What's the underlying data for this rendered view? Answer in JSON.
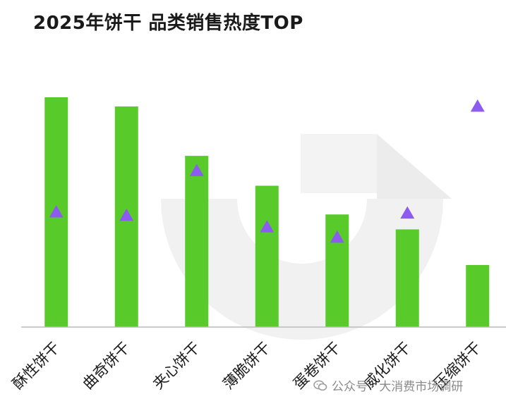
{
  "title": "2025年饼干 品类销售热度TOP",
  "watermark": {
    "icon": "wechat-icon",
    "text": "公众号 · 大消费市场调研"
  },
  "colors": {
    "bar": "#4fc820",
    "marker": "#8c5cf0",
    "axis": "#bbbbbb",
    "label": "#1a1a1a"
  },
  "chart_data": {
    "type": "bar",
    "title": "2025年饼干 品类销售热度TOP",
    "xlabel": "",
    "ylabel": "",
    "categories": [
      "酥性饼干",
      "曲奇饼干",
      "夹心饼干",
      "薄脆饼干",
      "蛋卷饼干",
      "威化饼干",
      "压缩饼干"
    ],
    "series": [
      {
        "kind": "bar",
        "values": [
          100,
          96,
          74.5,
          61.5,
          49,
          42.5,
          27
        ]
      },
      {
        "kind": "triangle-marker",
        "values": [
          50,
          48.5,
          68,
          43.5,
          39,
          49.5,
          96
        ]
      }
    ],
    "ylim": [
      0,
      105
    ],
    "grid": false,
    "legend": "none"
  }
}
